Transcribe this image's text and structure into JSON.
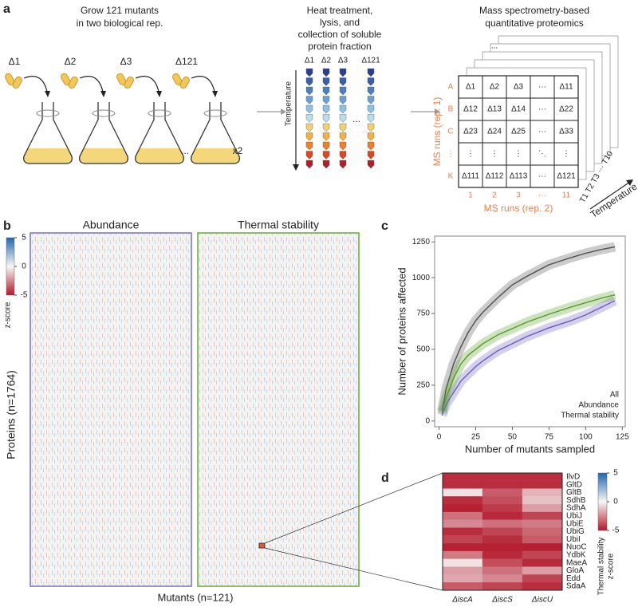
{
  "panel_labels": [
    "a",
    "b",
    "c",
    "d"
  ],
  "panel_a": {
    "step1": {
      "title": [
        "Grow 121 mutants",
        "in two biological rep."
      ],
      "mutants": [
        "Δ1",
        "Δ2",
        "Δ3",
        "Δ121"
      ],
      "ellipsis": "...",
      "replicates": "x2"
    },
    "step2": {
      "title": [
        "Heat treatment,",
        "lysis, and",
        "collection of soluble",
        "protein fraction"
      ],
      "tubes": [
        "Δ1",
        "Δ2",
        "Δ3",
        "Δ121"
      ],
      "ellipsis": "...",
      "axis": "Temperature"
    },
    "step3": {
      "title": [
        "Mass spectrometry-based",
        "quantitative proteomics"
      ],
      "grid": [
        [
          "Δ1",
          "Δ2",
          "Δ3",
          "···",
          "Δ11"
        ],
        [
          "Δ12",
          "Δ13",
          "Δ14",
          "···",
          "Δ22"
        ],
        [
          "Δ23",
          "Δ24",
          "Δ25",
          "···",
          "Δ33"
        ],
        [
          "⋮",
          "⋮",
          "⋮",
          "⋱",
          "⋮"
        ],
        [
          "Δ111",
          "Δ112",
          "Δ113",
          "···",
          "Δ121"
        ]
      ],
      "rows": [
        "A",
        "B",
        "C",
        "⋮",
        "K"
      ],
      "columns": [
        "1",
        "2",
        "3",
        "···",
        "11"
      ],
      "row_axis": "MS runs (rep. 1)",
      "column_axis": "MS runs (rep. 2)",
      "temperatures": "T1 T2 T3 ··· T10",
      "temperature_axis": "Temperature",
      "stack_ellipsis": "..."
    }
  },
  "panel_b": {
    "titles": [
      "Abundance",
      "Thermal stability"
    ],
    "y_label": "Proteins (n=1764)",
    "x_label": "Mutants (n=121)",
    "colorbar": {
      "label": "z-score",
      "zlim": [
        -5,
        5
      ],
      "ticks": [
        5,
        0,
        -5
      ]
    }
  },
  "chart_data": [
    {
      "type": "line",
      "x_label": "Number of mutants sampled",
      "y_label": "Number of proteins affected",
      "x": [
        2,
        5,
        10,
        15,
        20,
        25,
        30,
        40,
        50,
        60,
        75,
        90,
        100,
        110,
        120
      ],
      "series": [
        {
          "name": "All",
          "color": "#555555",
          "values": [
            70,
            230,
            400,
            520,
            620,
            700,
            760,
            860,
            950,
            1010,
            1090,
            1140,
            1170,
            1195,
            1215
          ]
        },
        {
          "name": "Abundance",
          "color": "#6f63c0",
          "values": [
            40,
            120,
            200,
            280,
            330,
            380,
            420,
            490,
            540,
            590,
            650,
            700,
            740,
            790,
            840
          ]
        },
        {
          "name": "Thermal stability",
          "color": "#5aa02c",
          "values": [
            55,
            170,
            300,
            400,
            460,
            500,
            540,
            600,
            645,
            690,
            745,
            795,
            825,
            855,
            880
          ]
        }
      ],
      "xlim": [
        -3,
        127
      ],
      "ylim": [
        -40,
        1290
      ],
      "xticks": [
        0,
        25,
        50,
        75,
        100,
        125
      ],
      "yticks": [
        0,
        250,
        500,
        750,
        1000,
        1250
      ],
      "legend": "bottom-right"
    },
    {
      "type": "heatmap",
      "rows": [
        "IlvD",
        "GltD",
        "GltB",
        "SdhB",
        "SdhA",
        "UbiJ",
        "UbiE",
        "UbiG",
        "UbiI",
        "NuoC",
        "YdbK",
        "MaeA",
        "GloA",
        "Edd",
        "SdaA"
      ],
      "columns": [
        "ΔiscA",
        "ΔiscS",
        "ΔiscU"
      ],
      "values": [
        [
          -4.5,
          -4.5,
          -4.5
        ],
        [
          -4.5,
          -4.5,
          -4.5
        ],
        [
          -0.5,
          -3.5,
          -1.5
        ],
        [
          -4.5,
          -3.8,
          -1.2
        ],
        [
          -4.8,
          -4.2,
          -2.0
        ],
        [
          -3.0,
          -4.6,
          -4.0
        ],
        [
          -2.5,
          -3.0,
          -2.8
        ],
        [
          -4.5,
          -4.0,
          -3.2
        ],
        [
          -4.0,
          -4.5,
          -3.5
        ],
        [
          -4.8,
          -4.8,
          -4.8
        ],
        [
          -2.8,
          -4.6,
          -4.0
        ],
        [
          -0.5,
          -3.8,
          -4.6
        ],
        [
          -2.0,
          -3.0,
          -2.0
        ],
        [
          -1.8,
          -2.5,
          -4.0
        ],
        [
          -3.5,
          -4.0,
          -4.5
        ]
      ],
      "zlim": [
        -5,
        5
      ],
      "colorbar": {
        "label": [
          "Thermal stability",
          "z-score"
        ],
        "ticks": [
          5,
          0,
          -5
        ]
      }
    }
  ]
}
